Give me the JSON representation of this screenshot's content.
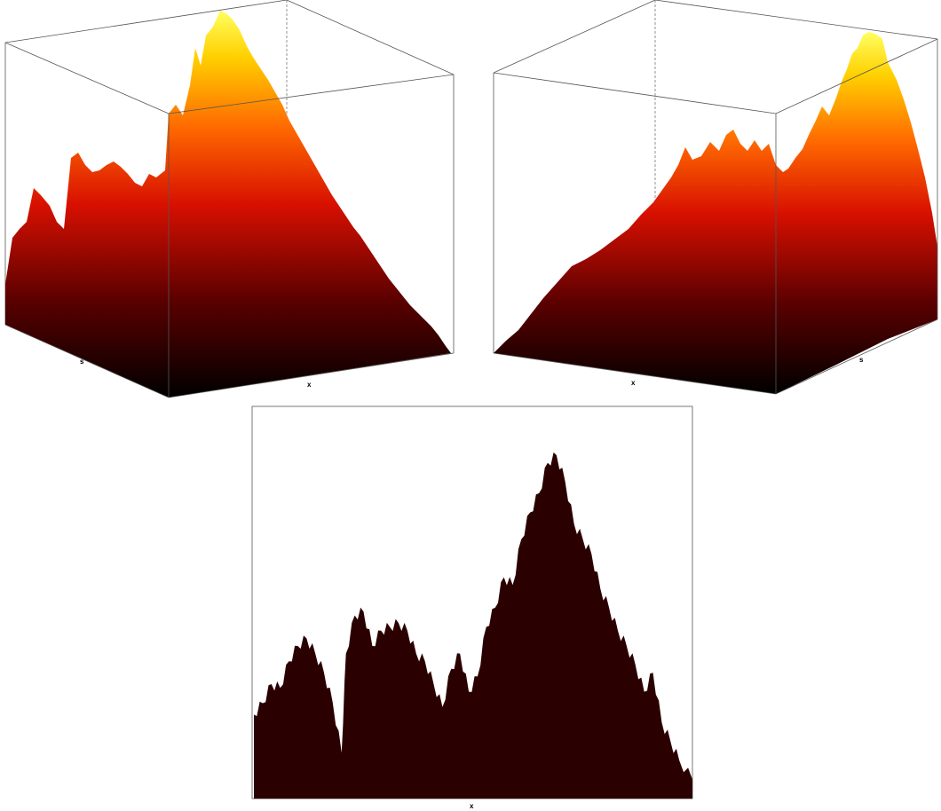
{
  "chart_data": [
    {
      "type": "area",
      "view": "3d-perspective-left",
      "colormap": "hot",
      "axis_labels": {
        "x": "x",
        "s": "s"
      },
      "surface_profile": [
        0.12,
        0.22,
        0.38,
        0.34,
        0.47,
        0.45,
        0.52,
        0.6,
        0.74,
        0.98,
        0.92,
        0.78,
        0.62,
        0.45,
        0.28,
        0.12,
        0.02
      ]
    },
    {
      "type": "area",
      "view": "3d-perspective-right",
      "colormap": "hot",
      "axis_labels": {
        "x": "x",
        "s": "s"
      },
      "surface_profile": [
        0.02,
        0.1,
        0.22,
        0.32,
        0.42,
        0.5,
        0.56,
        0.6,
        0.62,
        0.66,
        0.72,
        0.82,
        0.96,
        0.9,
        0.74,
        0.55,
        0.35
      ]
    },
    {
      "type": "area",
      "view": "side-projection",
      "color": "#2b0000",
      "axis_labels": {
        "x": "x"
      },
      "x": [
        0,
        0.02,
        0.04,
        0.06,
        0.08,
        0.1,
        0.12,
        0.14,
        0.16,
        0.18,
        0.2,
        0.21,
        0.23,
        0.25,
        0.27,
        0.29,
        0.31,
        0.33,
        0.35,
        0.37,
        0.39,
        0.41,
        0.43,
        0.45,
        0.47,
        0.49,
        0.51,
        0.53,
        0.55,
        0.57,
        0.59,
        0.61,
        0.63,
        0.65,
        0.67,
        0.69,
        0.71,
        0.73,
        0.75,
        0.77,
        0.79,
        0.81,
        0.83,
        0.85,
        0.87,
        0.89,
        0.91,
        0.93,
        0.95,
        0.97,
        1.0
      ],
      "y": [
        0.22,
        0.25,
        0.3,
        0.29,
        0.36,
        0.4,
        0.42,
        0.38,
        0.33,
        0.25,
        0.12,
        0.38,
        0.48,
        0.49,
        0.4,
        0.44,
        0.45,
        0.46,
        0.44,
        0.38,
        0.36,
        0.3,
        0.24,
        0.34,
        0.38,
        0.28,
        0.32,
        0.45,
        0.5,
        0.58,
        0.56,
        0.68,
        0.75,
        0.8,
        0.88,
        0.9,
        0.83,
        0.72,
        0.68,
        0.64,
        0.55,
        0.5,
        0.44,
        0.4,
        0.35,
        0.28,
        0.33,
        0.2,
        0.15,
        0.1,
        0.05
      ],
      "ylim": [
        0,
        1
      ]
    }
  ]
}
